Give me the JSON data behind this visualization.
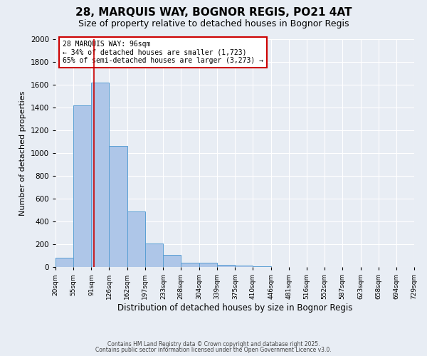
{
  "title": "28, MARQUIS WAY, BOGNOR REGIS, PO21 4AT",
  "subtitle": "Size of property relative to detached houses in Bognor Regis",
  "xlabel": "Distribution of detached houses by size in Bognor Regis",
  "ylabel": "Number of detached properties",
  "bar_values": [
    80,
    1420,
    1620,
    1060,
    490,
    205,
    105,
    40,
    40,
    20,
    15,
    5,
    2,
    1,
    0,
    0,
    0,
    0,
    0,
    0
  ],
  "bin_edges": [
    20,
    55,
    91,
    126,
    162,
    197,
    233,
    268,
    304,
    339,
    375,
    410,
    446,
    481,
    516,
    552,
    587,
    623,
    658,
    694,
    729
  ],
  "bar_color": "#aec6e8",
  "bar_edge_color": "#5a9fd4",
  "background_color": "#e8edf4",
  "grid_color": "#ffffff",
  "vline_x": 96,
  "vline_color": "#cc0000",
  "annotation_text": "28 MARQUIS WAY: 96sqm\n← 34% of detached houses are smaller (1,723)\n65% of semi-detached houses are larger (3,273) →",
  "annotation_box_color": "#cc0000",
  "annotation_bg": "#ffffff",
  "ylim": [
    0,
    2000
  ],
  "yticks": [
    0,
    200,
    400,
    600,
    800,
    1000,
    1200,
    1400,
    1600,
    1800,
    2000
  ],
  "footer_line1": "Contains HM Land Registry data © Crown copyright and database right 2025.",
  "footer_line2": "Contains public sector information licensed under the Open Government Licence v3.0.",
  "title_fontsize": 11,
  "subtitle_fontsize": 9
}
